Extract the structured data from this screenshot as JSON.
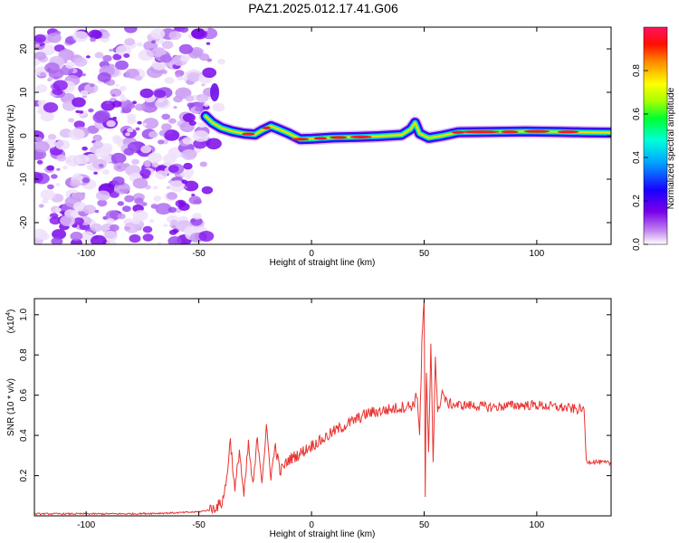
{
  "title": "PAZ1.2025.012.17.41.G06",
  "chart_data": [
    {
      "type": "heatmap",
      "xlabel": "Height of straight line (km)",
      "ylabel": "Frequency (Hz)",
      "xlim": [
        -123,
        133
      ],
      "ylim": [
        -25,
        25
      ],
      "xticks": [
        "-100",
        "-50",
        "0",
        "50",
        "100"
      ],
      "yticks": [
        "20",
        "10",
        "0",
        "-10",
        "-20"
      ],
      "noise_region_x": [
        -123,
        -45
      ],
      "ridge": {
        "x": [
          -47,
          -44,
          -40,
          -35,
          -30,
          -25,
          -22,
          -18,
          -15,
          -10,
          -5,
          0,
          10,
          20,
          30,
          40,
          44,
          46,
          48,
          52,
          58,
          65,
          80,
          95,
          110,
          120,
          133
        ],
        "y": [
          4.5,
          3.0,
          1.8,
          1.0,
          0.5,
          0.3,
          1.2,
          2.2,
          1.6,
          0.5,
          -0.8,
          -0.7,
          -0.4,
          -0.3,
          -0.1,
          0.2,
          1.5,
          3.0,
          0.5,
          -0.5,
          0.0,
          0.8,
          0.9,
          1.0,
          0.9,
          0.8,
          0.7
        ]
      },
      "colorbar": {
        "label": "Normalized spectral amplitude",
        "ticks": [
          "0.0",
          "0.2",
          "0.4",
          "0.6",
          "0.8"
        ],
        "range": [
          0,
          1
        ]
      }
    },
    {
      "type": "line",
      "xlabel": "Height of straight line (km)",
      "ylabel": "SNR (10 * v/v)",
      "scale_note": "(x10",
      "scale_exp": "4",
      "xlim": [
        -123,
        133
      ],
      "ylim": [
        0,
        1.08
      ],
      "xticks": [
        "-100",
        "-50",
        "0",
        "50",
        "100"
      ],
      "yticks": [
        "0.2",
        "0.4",
        "0.6",
        "0.8",
        "1.0"
      ],
      "color": "#e8332f",
      "series": [
        {
          "x": [
            -123,
            -100,
            -80,
            -60,
            -50,
            -45,
            -40,
            -38,
            -36,
            -34,
            -32,
            -30,
            -28,
            -26,
            -24,
            -22,
            -20,
            -18,
            -16,
            -14,
            -10,
            -5,
            0,
            5,
            10,
            15,
            20,
            25,
            30,
            35,
            40,
            45,
            47,
            48,
            49,
            50,
            50.5,
            51,
            52,
            53,
            54,
            55,
            56,
            58,
            60,
            65,
            70,
            80,
            90,
            100,
            110,
            118,
            121,
            122,
            125,
            133
          ],
          "y": [
            0.01,
            0.01,
            0.01,
            0.015,
            0.02,
            0.03,
            0.06,
            0.15,
            0.38,
            0.12,
            0.33,
            0.09,
            0.36,
            0.14,
            0.39,
            0.18,
            0.43,
            0.2,
            0.35,
            0.22,
            0.28,
            0.31,
            0.35,
            0.38,
            0.42,
            0.45,
            0.48,
            0.51,
            0.52,
            0.53,
            0.54,
            0.55,
            0.6,
            0.4,
            0.85,
            1.08,
            0.1,
            0.7,
            0.3,
            0.86,
            0.28,
            0.8,
            0.5,
            0.62,
            0.56,
            0.55,
            0.55,
            0.54,
            0.55,
            0.55,
            0.54,
            0.53,
            0.53,
            0.27,
            0.27,
            0.26
          ]
        }
      ]
    }
  ]
}
